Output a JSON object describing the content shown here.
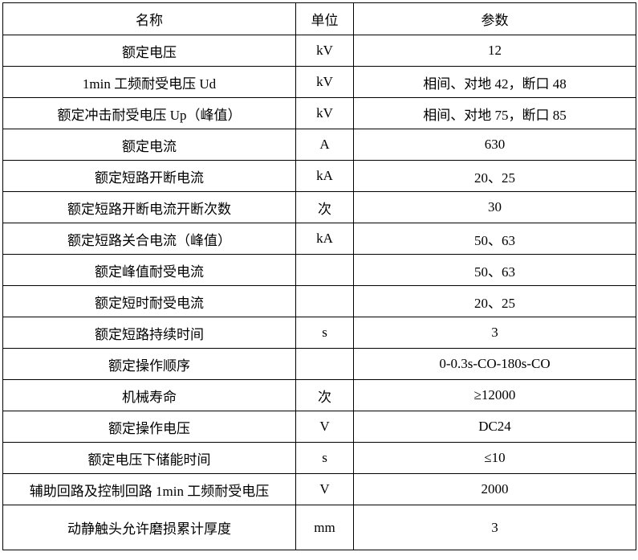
{
  "colors": {
    "border": "#000000",
    "text": "#000000",
    "background": "#ffffff"
  },
  "table": {
    "columns": [
      "名称",
      "单位",
      "参数"
    ],
    "rows": [
      {
        "name": "额定电压",
        "unit": "kV",
        "value": "12"
      },
      {
        "name": "1min 工频耐受电压 Ud",
        "unit": "kV",
        "value": "相间、对地 42，断口 48"
      },
      {
        "name": "额定冲击耐受电压 Up（峰值）",
        "unit": "kV",
        "value": "相间、对地 75，断口 85"
      },
      {
        "name": "额定电流",
        "unit": "A",
        "value": "630"
      },
      {
        "name": "额定短路开断电流",
        "unit": "kA",
        "value": "20、25"
      },
      {
        "name": "额定短路开断电流开断次数",
        "unit": "次",
        "value": "30"
      },
      {
        "name": "额定短路关合电流（峰值）",
        "unit": "kA",
        "value": "50、63"
      },
      {
        "name": "额定峰值耐受电流",
        "unit": "",
        "value": "50、63"
      },
      {
        "name": "额定短时耐受电流",
        "unit": "",
        "value": "20、25"
      },
      {
        "name": "额定短路持续时间",
        "unit": "s",
        "value": "3"
      },
      {
        "name": "额定操作顺序",
        "unit": "",
        "value": "0-0.3s-CO-180s-CO"
      },
      {
        "name": "机械寿命",
        "unit": "次",
        "value": "≥12000"
      },
      {
        "name": "额定操作电压",
        "unit": "V",
        "value": "DC24"
      },
      {
        "name": "额定电压下储能时间",
        "unit": "s",
        "value": "≤10"
      },
      {
        "name": "辅助回路及控制回路 1min 工频耐受电压",
        "unit": "V",
        "value": "2000"
      },
      {
        "name": "动静触头允许磨损累计厚度",
        "unit": "mm",
        "value": "3"
      }
    ]
  }
}
